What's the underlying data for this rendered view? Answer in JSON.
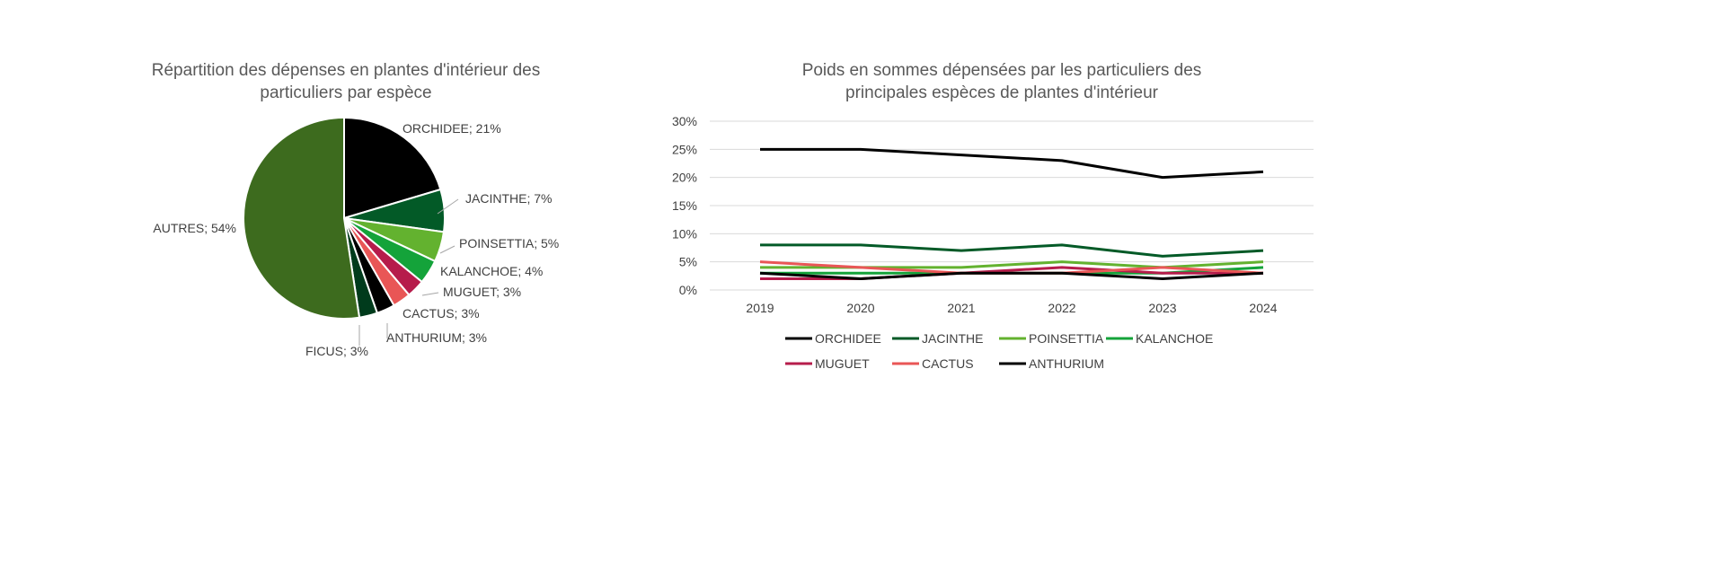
{
  "chart_data": [
    {
      "type": "pie",
      "title": "Répartition des dépenses en plantes d'intérieur des particuliers par espèce",
      "labels": [
        "ORCHIDEE",
        "JACINTHE",
        "POINSETTIA",
        "KALANCHOE",
        "MUGUET",
        "CACTUS",
        "ANTHURIUM",
        "FICUS",
        "AUTRES"
      ],
      "values": [
        21,
        7,
        5,
        4,
        3,
        3,
        3,
        3,
        54
      ],
      "data_labels": [
        "ORCHIDEE; 21%",
        "JACINTHE; 7%",
        "POINSETTIA; 5%",
        "KALANCHOE; 4%",
        "MUGUET; 3%",
        "CACTUS; 3%",
        "ANTHURIUM; 3%",
        "FICUS; 3%",
        "AUTRES; 54%"
      ],
      "colors": [
        "#000000",
        "#035a27",
        "#63b22f",
        "#14a33a",
        "#b61c4b",
        "#e95656",
        "#000000",
        "#003b1c",
        "#3d6b1e"
      ]
    },
    {
      "type": "line",
      "title": "Poids en sommes dépensées par les particuliers des principales espèces de plantes d'intérieur",
      "x": [
        "2019",
        "2020",
        "2021",
        "2022",
        "2023",
        "2024"
      ],
      "ylim": [
        0,
        30
      ],
      "yticks": [
        "0%",
        "5%",
        "10%",
        "15%",
        "20%",
        "25%",
        "30%"
      ],
      "grid": true,
      "legend": "bottom",
      "series": [
        {
          "name": "ORCHIDEE",
          "color": "#000000",
          "values": [
            25,
            25,
            24,
            23,
            20,
            21
          ]
        },
        {
          "name": "JACINTHE",
          "color": "#035a27",
          "values": [
            8,
            8,
            7,
            8,
            6,
            7
          ]
        },
        {
          "name": "POINSETTIA",
          "color": "#63b22f",
          "values": [
            4,
            4,
            4,
            5,
            4,
            5
          ]
        },
        {
          "name": "KALANCHOE",
          "color": "#14a33a",
          "values": [
            3,
            3,
            3,
            3,
            3,
            4
          ]
        },
        {
          "name": "MUGUET",
          "color": "#b61c4b",
          "values": [
            2,
            2,
            3,
            4,
            3,
            3
          ]
        },
        {
          "name": "CACTUS",
          "color": "#e95656",
          "values": [
            5,
            4,
            3,
            3,
            4,
            3
          ]
        },
        {
          "name": "ANTHURIUM",
          "color": "#000000",
          "values": [
            3,
            2,
            3,
            3,
            2,
            3
          ]
        }
      ]
    }
  ]
}
